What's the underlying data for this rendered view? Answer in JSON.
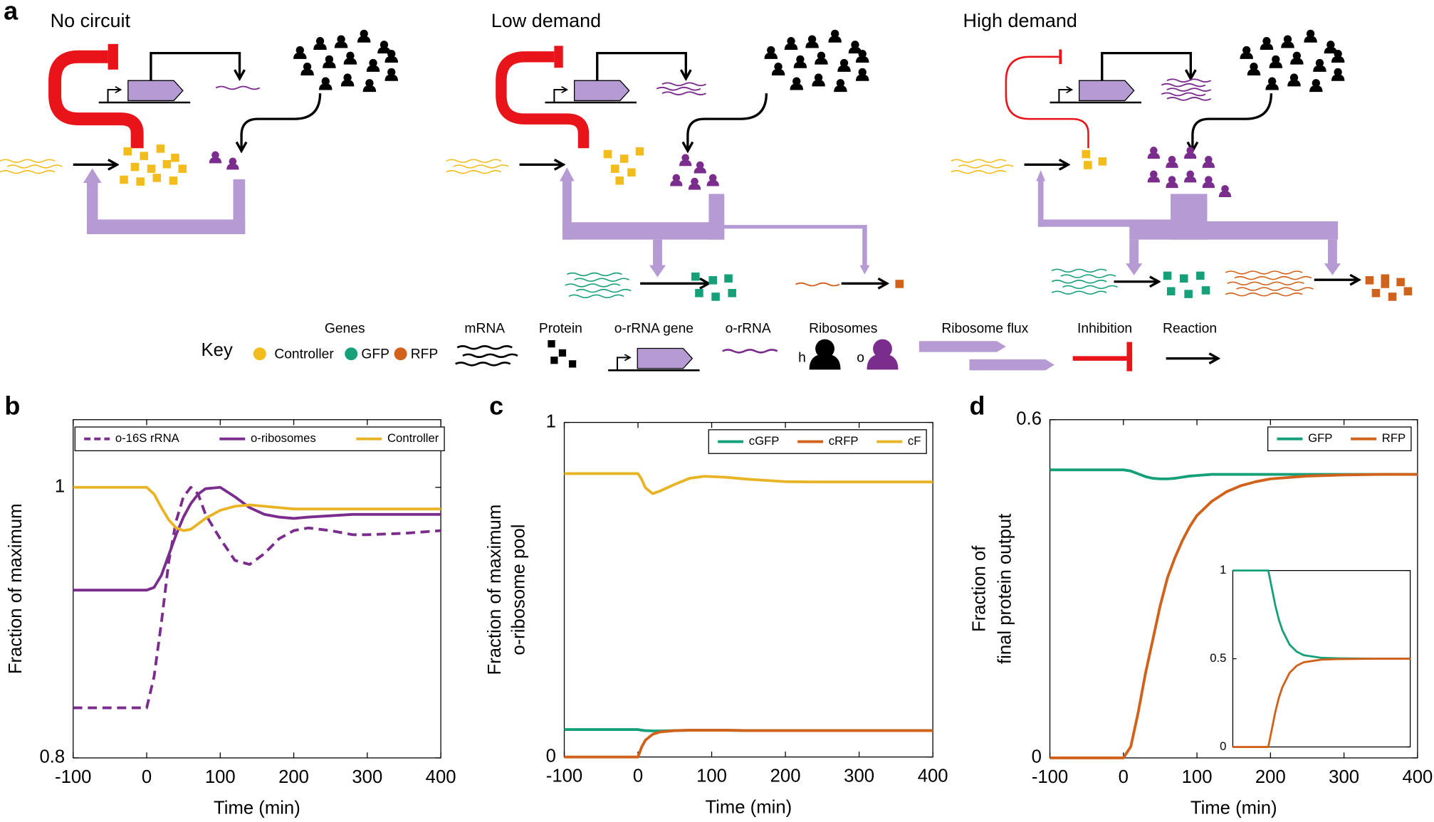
{
  "panel_a": {
    "label": "a",
    "scenarios": [
      "No circuit",
      "Low demand",
      "High demand"
    ],
    "key": {
      "title": "Key",
      "genes": "Genes",
      "gene_names": [
        "Controller",
        "GFP",
        "RFP"
      ],
      "mrna": "mRNA",
      "protein": "Protein",
      "orrna_gene": "o-rRNA gene",
      "orrna": "o-rRNA",
      "ribosomes": "Ribosomes",
      "ribosome_types": [
        "h",
        "o"
      ],
      "flux": "Ribosome flux",
      "inhibition": "Inhibition",
      "reaction": "Reaction"
    }
  },
  "chart_data": [
    {
      "type": "line",
      "label": "b",
      "xlabel": "Time (min)",
      "ylabel": "Fraction of maximum",
      "x": [
        -100,
        0,
        10,
        20,
        30,
        40,
        50,
        60,
        70,
        80,
        100,
        120,
        140,
        160,
        180,
        200,
        220,
        250,
        280,
        300,
        350,
        400
      ],
      "series": [
        {
          "name": "o-16S rRNA",
          "color": "#7b2d8e",
          "linestyle": "dashed",
          "values": [
            0.837,
            0.837,
            0.86,
            0.9,
            0.945,
            0.975,
            0.993,
            1.0,
            0.995,
            0.98,
            0.962,
            0.946,
            0.943,
            0.951,
            0.962,
            0.968,
            0.97,
            0.968,
            0.965,
            0.965,
            0.966,
            0.968
          ]
        },
        {
          "name": "o-ribosomes",
          "color": "#7b2d8e",
          "linestyle": "solid",
          "values": [
            0.924,
            0.924,
            0.926,
            0.935,
            0.95,
            0.965,
            0.978,
            0.988,
            0.995,
            0.999,
            1.0,
            0.993,
            0.985,
            0.98,
            0.978,
            0.977,
            0.978,
            0.979,
            0.98,
            0.98,
            0.98,
            0.98
          ]
        },
        {
          "name": "Controller",
          "color": "#e8b426",
          "linestyle": "solid",
          "values": [
            1.0,
            1.0,
            0.995,
            0.985,
            0.976,
            0.97,
            0.968,
            0.969,
            0.973,
            0.977,
            0.983,
            0.986,
            0.987,
            0.986,
            0.985,
            0.984,
            0.984,
            0.984,
            0.984,
            0.984,
            0.984,
            0.984
          ]
        }
      ],
      "xlim": [
        -100,
        400
      ],
      "xticks": [
        -100,
        0,
        100,
        200,
        300,
        400
      ],
      "ylim": [
        0.8,
        1.05
      ],
      "yticks": [
        0.8,
        1
      ],
      "legend": "top left"
    },
    {
      "type": "line",
      "label": "c",
      "xlabel": "Time (min)",
      "ylabel": [
        "Fraction of maximum",
        "o-ribosome pool"
      ],
      "x": [
        -100,
        0,
        5,
        10,
        20,
        30,
        50,
        70,
        90,
        120,
        150,
        200,
        250,
        300,
        400
      ],
      "series": [
        {
          "name": "cGFP",
          "color": "#16a07a",
          "linestyle": "solid",
          "values": [
            0.082,
            0.082,
            0.08,
            0.079,
            0.078,
            0.078,
            0.079,
            0.08,
            0.08,
            0.08,
            0.079,
            0.079,
            0.079,
            0.079,
            0.079
          ]
        },
        {
          "name": "cRFP",
          "color": "#d0621c",
          "linestyle": "solid",
          "values": [
            0,
            0,
            0.03,
            0.05,
            0.068,
            0.075,
            0.079,
            0.08,
            0.08,
            0.08,
            0.079,
            0.079,
            0.079,
            0.079,
            0.079
          ]
        },
        {
          "name": "cF",
          "color": "#e8b426",
          "linestyle": "solid",
          "values": [
            0.847,
            0.847,
            0.83,
            0.805,
            0.787,
            0.795,
            0.815,
            0.833,
            0.839,
            0.836,
            0.83,
            0.823,
            0.822,
            0.822,
            0.822
          ]
        }
      ],
      "xlim": [
        -100,
        400
      ],
      "xticks": [
        -100,
        0,
        100,
        200,
        300,
        400
      ],
      "ylim": [
        0,
        1
      ],
      "yticks": [
        0,
        1
      ],
      "legend": "top right"
    },
    {
      "type": "line",
      "label": "d",
      "xlabel": "Time (min)",
      "ylabel": [
        "Fraction of",
        "final protein output"
      ],
      "x": [
        -100,
        0,
        10,
        20,
        30,
        40,
        50,
        60,
        70,
        80,
        90,
        100,
        120,
        140,
        160,
        180,
        200,
        250,
        300,
        350,
        400
      ],
      "series": [
        {
          "name": "GFP",
          "color": "#16a07a",
          "linestyle": "solid",
          "values": [
            0.511,
            0.511,
            0.509,
            0.504,
            0.499,
            0.496,
            0.495,
            0.495,
            0.496,
            0.498,
            0.5,
            0.501,
            0.503,
            0.503,
            0.503,
            0.503,
            0.503,
            0.503,
            0.503,
            0.503,
            0.503
          ]
        },
        {
          "name": "RFP",
          "color": "#d0621c",
          "linestyle": "solid",
          "values": [
            0,
            0,
            0.02,
            0.08,
            0.15,
            0.21,
            0.27,
            0.32,
            0.355,
            0.385,
            0.41,
            0.43,
            0.455,
            0.472,
            0.483,
            0.49,
            0.495,
            0.5,
            0.502,
            0.503,
            0.503
          ]
        }
      ],
      "xlim": [
        -100,
        400
      ],
      "xticks": [
        -100,
        0,
        100,
        200,
        300,
        400
      ],
      "ylim": [
        0,
        0.6
      ],
      "yticks": [
        0,
        0.6
      ],
      "legend": "top right"
    },
    {
      "type": "line",
      "x": [
        -100,
        0,
        10,
        20,
        30,
        40,
        60,
        80,
        100,
        150,
        200,
        300,
        400
      ],
      "series": [
        {
          "color": "#16a07a",
          "linestyle": "solid",
          "values": [
            1,
            1,
            0.9,
            0.8,
            0.72,
            0.66,
            0.58,
            0.54,
            0.52,
            0.505,
            0.502,
            0.5,
            0.5
          ]
        },
        {
          "color": "#d0621c",
          "linestyle": "solid",
          "values": [
            0,
            0,
            0.1,
            0.2,
            0.28,
            0.34,
            0.42,
            0.46,
            0.48,
            0.495,
            0.498,
            0.5,
            0.5
          ]
        }
      ],
      "xlim": [
        -100,
        400
      ],
      "ylim": [
        0,
        1
      ],
      "yticks": [
        0,
        0.5,
        1
      ]
    }
  ]
}
